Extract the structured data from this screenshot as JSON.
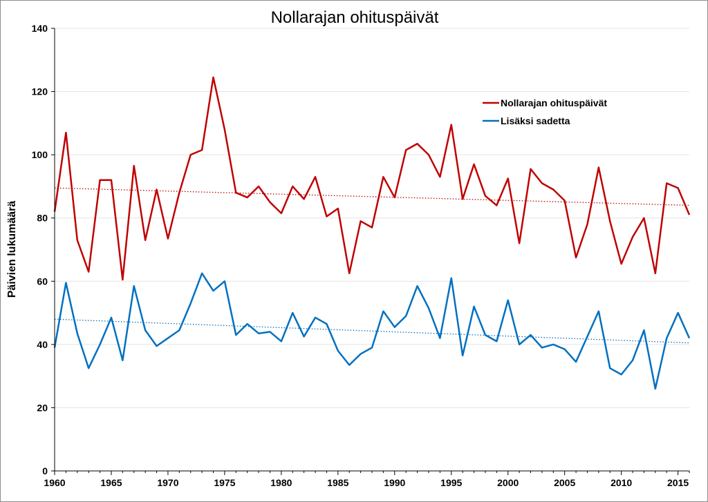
{
  "chart_data": {
    "type": "line",
    "title": "Nollarajan ohituspäivät",
    "ylabel": "Päivien lukumäärä",
    "xlabel": "",
    "ylim": [
      0,
      140
    ],
    "xlim": [
      1960,
      2016
    ],
    "y_ticks": [
      "0",
      "20",
      "40",
      "60",
      "80",
      "100",
      "120",
      "140"
    ],
    "x_ticks": [
      "1960",
      "1965",
      "1970",
      "1975",
      "1980",
      "1985",
      "1990",
      "1995",
      "2000",
      "2005",
      "2010",
      "2015"
    ],
    "grid": "horizontal",
    "legend_position": "top-right",
    "x": [
      1960,
      1961,
      1962,
      1963,
      1964,
      1965,
      1966,
      1967,
      1968,
      1969,
      1970,
      1971,
      1972,
      1973,
      1974,
      1975,
      1976,
      1977,
      1978,
      1979,
      1980,
      1981,
      1982,
      1983,
      1984,
      1985,
      1986,
      1987,
      1988,
      1989,
      1990,
      1991,
      1992,
      1993,
      1994,
      1995,
      1996,
      1997,
      1998,
      1999,
      2000,
      2001,
      2002,
      2003,
      2004,
      2005,
      2006,
      2007,
      2008,
      2009,
      2010,
      2011,
      2012,
      2013,
      2014,
      2015,
      2016
    ],
    "series": [
      {
        "name": "Nollarajan ohituspäivät",
        "color": "#c00000",
        "values": [
          82,
          107,
          73,
          63,
          92,
          92,
          60.5,
          96.5,
          73,
          89,
          73.5,
          88,
          100,
          101.5,
          124.5,
          108,
          88,
          86.5,
          90,
          85,
          81.5,
          90,
          86,
          93,
          80.5,
          83,
          62.5,
          79,
          77,
          93,
          86.5,
          101.5,
          103.5,
          100,
          93,
          109.5,
          86,
          97,
          87,
          84,
          92.5,
          72,
          95.5,
          91,
          89,
          85.5,
          67.5,
          78,
          96,
          79,
          65.5,
          74,
          80,
          62.5,
          91,
          89.5,
          81
        ],
        "trend": [
          89.5,
          84
        ]
      },
      {
        "name": "Lisäksi sadetta",
        "color": "#0070c0",
        "values": [
          39,
          59.5,
          43.5,
          32.5,
          40,
          48.5,
          35,
          58.5,
          44.5,
          39.5,
          42,
          44.5,
          53,
          62.5,
          57,
          60,
          43,
          46.5,
          43.5,
          44,
          41,
          50,
          42.5,
          48.5,
          46.5,
          38,
          33.5,
          37,
          39,
          50.5,
          45.5,
          49,
          58.5,
          51.5,
          42,
          61,
          36.5,
          52,
          43,
          41,
          54,
          40,
          43,
          39,
          40,
          38.5,
          34.5,
          42.5,
          50.5,
          32.5,
          30.5,
          35,
          44.5,
          26,
          42,
          50,
          42
        ],
        "trend": [
          48,
          40.5
        ]
      }
    ]
  }
}
